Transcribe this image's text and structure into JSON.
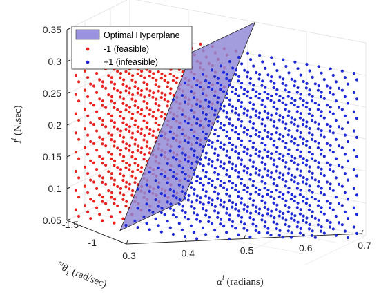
{
  "chart_data": {
    "type": "scatter",
    "subtype": "3d-scatter-with-plane",
    "x_axis": {
      "label": "α^i (radians)",
      "ticks": [
        "0.3",
        "0.4",
        "0.5",
        "0.6",
        "0.7"
      ],
      "range": [
        0.3,
        0.7
      ]
    },
    "y_axis": {
      "label": "^mθ̇₁ (rad/sec)",
      "ticks": [
        "-1.5",
        "-1"
      ],
      "range": [
        -1.6,
        -0.9
      ]
    },
    "z_axis": {
      "label": "I^i (N.sec)",
      "ticks": [
        "0.05",
        "0.1",
        "0.15",
        "0.2",
        "0.25",
        "0.3",
        "0.35"
      ],
      "range": [
        0.05,
        0.35
      ]
    },
    "grid": true,
    "legend": {
      "placement": "top-left",
      "entries": [
        "Optimal Hyperplane",
        "-1 (feasible)",
        "+1 (infeasible)"
      ]
    },
    "colors": {
      "plane": "#8f86d6",
      "feasible": "#e8231f",
      "infeasible": "#1f29d6"
    },
    "series": [
      {
        "name": "-1 (feasible)",
        "class": -1,
        "x_range": [
          0.3,
          0.45
        ],
        "y_range": [
          -1.6,
          -0.9
        ],
        "z_range": [
          0.05,
          0.32
        ]
      },
      {
        "name": "+1 (infeasible)",
        "class": 1,
        "x_range": [
          0.45,
          0.7
        ],
        "y_range": [
          -1.6,
          -0.9
        ],
        "z_range": [
          0.05,
          0.32
        ]
      }
    ],
    "hyperplane": {
      "description_x_at_low_I": 0.39,
      "description_x_at_high_I": 0.5
    }
  }
}
